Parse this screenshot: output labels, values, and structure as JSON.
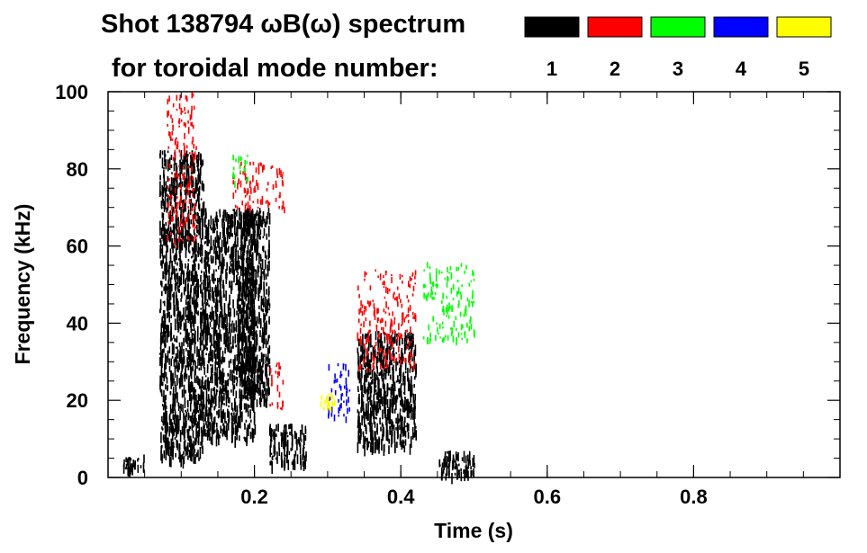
{
  "title_line1": "Shot 138794 ωB(ω) spectrum",
  "title_line2": "for toroidal mode number:",
  "chart_data": {
    "type": "heatmap",
    "xlabel": "Time (s)",
    "ylabel": "Frequency (kHz)",
    "xlim": [
      0,
      1.0
    ],
    "ylim": [
      0,
      100
    ],
    "x_ticks": [
      0.2,
      0.4,
      0.6,
      0.8
    ],
    "y_ticks": [
      0,
      20,
      40,
      60,
      80,
      100
    ],
    "grid": false,
    "legend_position": "top-right",
    "legend": [
      {
        "label": "1",
        "color": "#000000"
      },
      {
        "label": "2",
        "color": "#ff0000"
      },
      {
        "label": "3",
        "color": "#00ff00"
      },
      {
        "label": "4",
        "color": "#0000ff"
      },
      {
        "label": "5",
        "color": "#ffff00"
      }
    ],
    "regions": [
      {
        "mode": "1",
        "t": [
          0.07,
          0.13
        ],
        "f": [
          5,
          85
        ]
      },
      {
        "mode": "1",
        "t": [
          0.13,
          0.2
        ],
        "f": [
          10,
          70
        ]
      },
      {
        "mode": "1",
        "t": [
          0.18,
          0.22
        ],
        "f": [
          20,
          70
        ]
      },
      {
        "mode": "1",
        "t": [
          0.22,
          0.27
        ],
        "f": [
          4,
          14
        ]
      },
      {
        "mode": "1",
        "t": [
          0.34,
          0.42
        ],
        "f": [
          8,
          38
        ]
      },
      {
        "mode": "1",
        "t": [
          0.45,
          0.5
        ],
        "f": [
          1,
          7
        ]
      },
      {
        "mode": "1",
        "t": [
          0.02,
          0.05
        ],
        "f": [
          2,
          6
        ]
      },
      {
        "mode": "2",
        "t": [
          0.17,
          0.24
        ],
        "f": [
          70,
          82
        ]
      },
      {
        "mode": "2",
        "t": [
          0.08,
          0.12
        ],
        "f": [
          60,
          100
        ]
      },
      {
        "mode": "2",
        "t": [
          0.34,
          0.42
        ],
        "f": [
          28,
          54
        ]
      },
      {
        "mode": "2",
        "t": [
          0.22,
          0.24
        ],
        "f": [
          18,
          30
        ]
      },
      {
        "mode": "3",
        "t": [
          0.17,
          0.19
        ],
        "f": [
          76,
          84
        ]
      },
      {
        "mode": "3",
        "t": [
          0.43,
          0.5
        ],
        "f": [
          36,
          56
        ]
      },
      {
        "mode": "4",
        "t": [
          0.3,
          0.33
        ],
        "f": [
          15,
          30
        ]
      },
      {
        "mode": "5",
        "t": [
          0.29,
          0.31
        ],
        "f": [
          18,
          22
        ]
      }
    ]
  }
}
